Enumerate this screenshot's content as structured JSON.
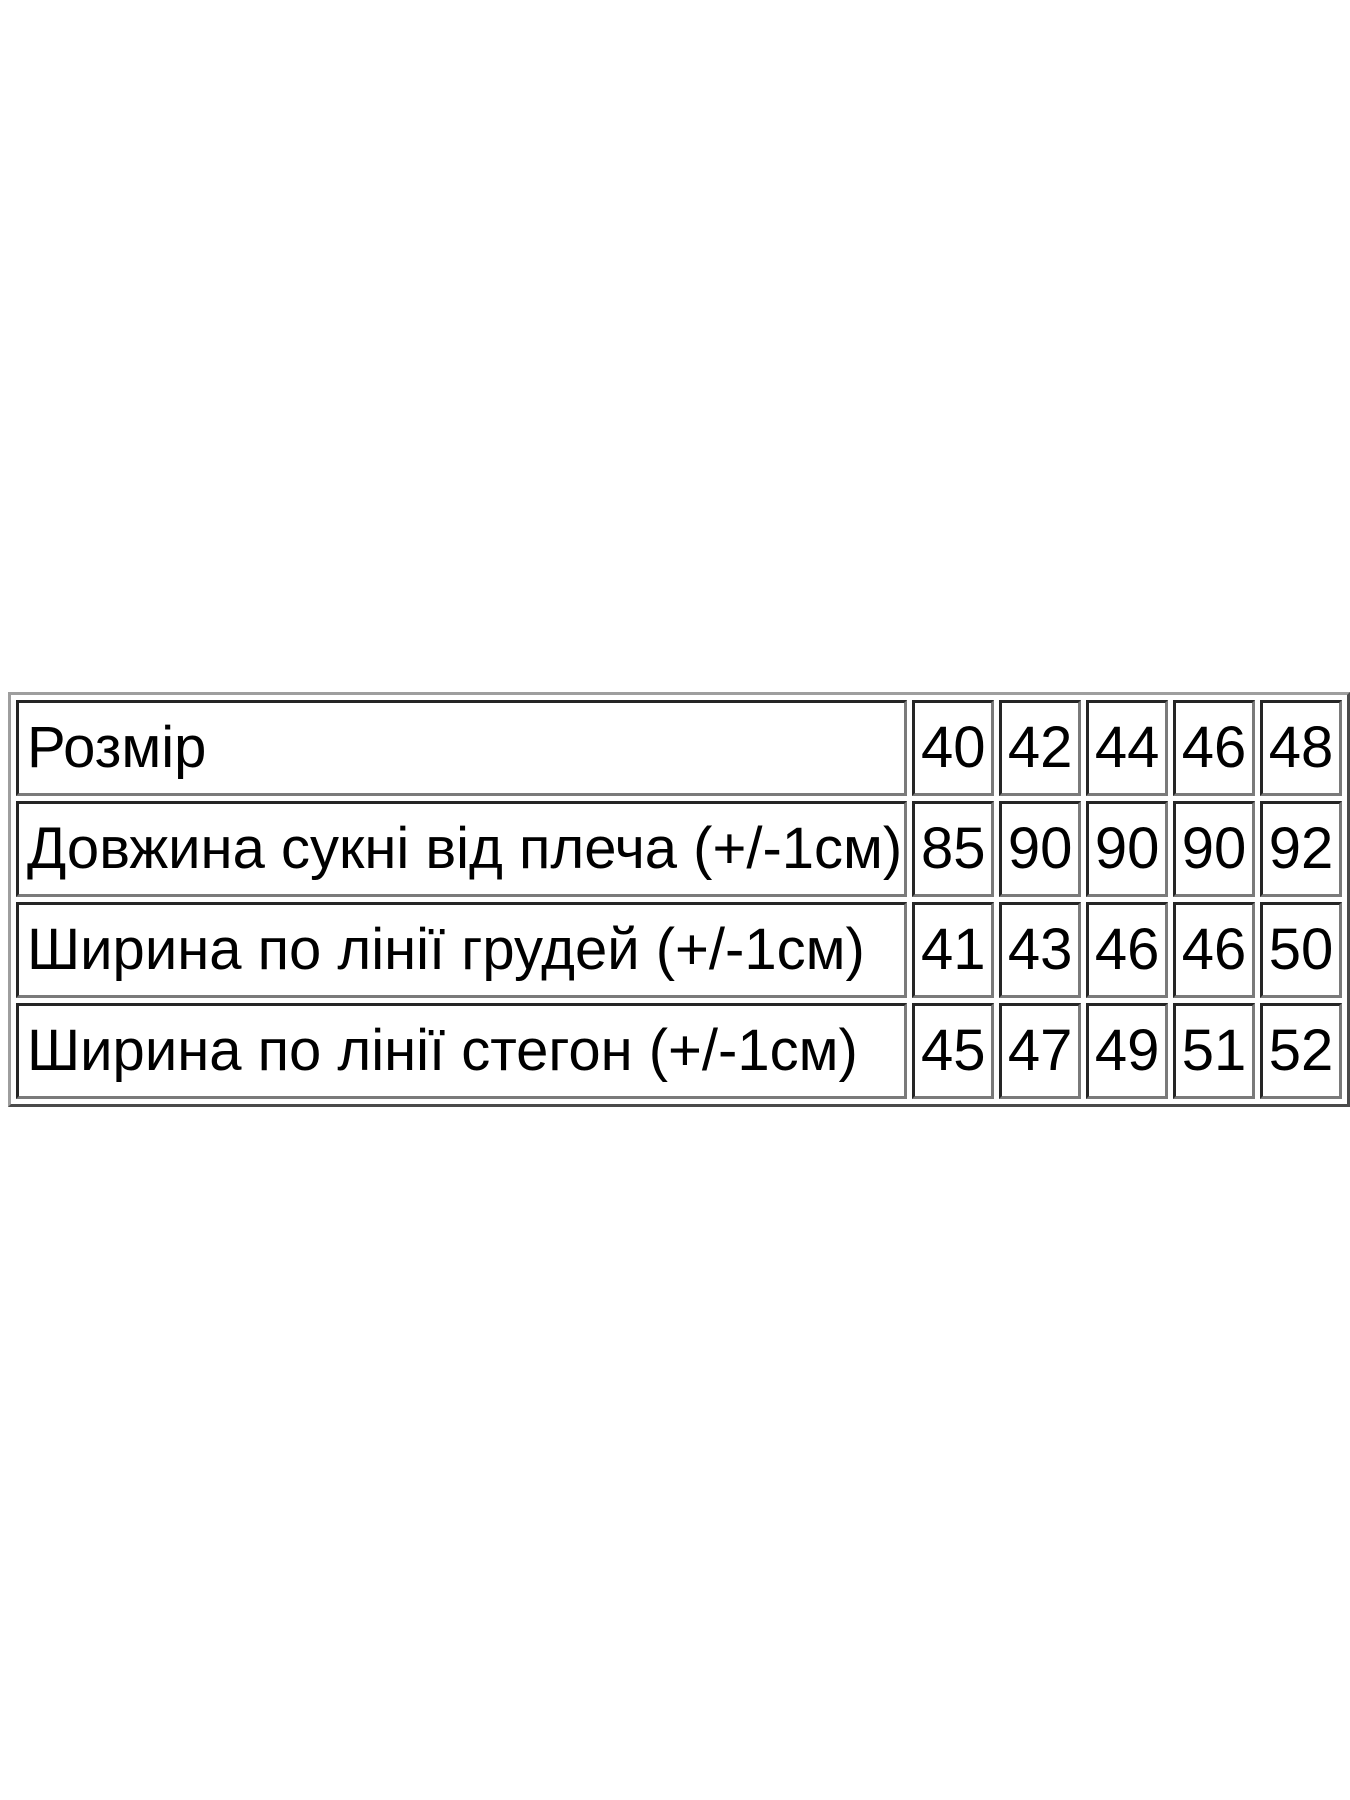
{
  "page": {
    "background_color": "#ffffff",
    "text_color": "#000000",
    "table_border_color": "#7a7a7a"
  },
  "chart_data": {
    "type": "table",
    "title": "",
    "columns": [
      "Розмір",
      "40",
      "42",
      "44",
      "46",
      "48"
    ],
    "rows": [
      [
        "Довжина сукні від плеча (+/-1см)",
        85,
        90,
        90,
        90,
        92
      ],
      [
        "Ширина по лінії грудей (+/-1см)",
        41,
        43,
        46,
        46,
        50
      ],
      [
        "Ширина по лінії стегон (+/-1см)",
        45,
        47,
        49,
        51,
        52
      ]
    ]
  }
}
